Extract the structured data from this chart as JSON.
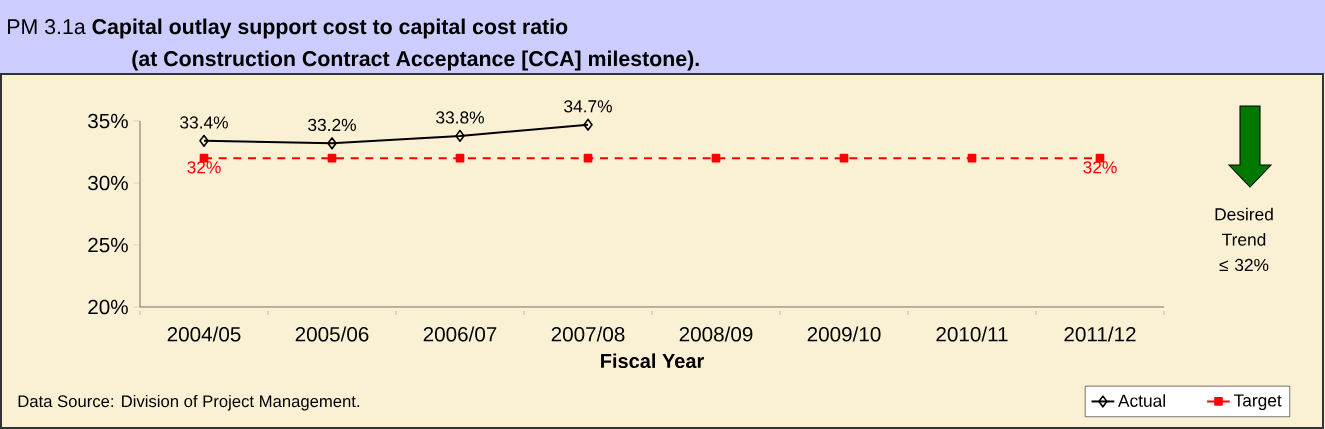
{
  "chart_data": {
    "type": "line",
    "title": "PM 3.1a **Capital outlay support cost to capital cost ratio**",
    "subtitle": "(at Construction Contract Acceptance [CCA] milestone).",
    "xlabel": "Fiscal Year",
    "categories": [
      "2004/05",
      "2005/06",
      "2006/07",
      "2007/08",
      "2008/09",
      "2009/10",
      "2010/11",
      "2011/12"
    ],
    "series": [
      {
        "name": "Actual",
        "color": "#000000",
        "marker": "diamond",
        "line_style": "solid",
        "values": [
          33.4,
          33.2,
          33.8,
          34.7,
          null,
          null,
          null,
          null
        ],
        "value_labels": [
          "33.4%",
          "33.2%",
          "33.8%",
          "34.7%",
          null,
          null,
          null,
          null
        ]
      },
      {
        "name": "Target",
        "color": "#ff0000",
        "marker": "square",
        "line_style": "dashed",
        "values": [
          32,
          32,
          32,
          32,
          32,
          32,
          32,
          32
        ],
        "value_labels": [
          "32%",
          null,
          null,
          null,
          null,
          null,
          null,
          "32%"
        ]
      }
    ],
    "ylim": [
      20,
      35
    ],
    "yticks": [
      {
        "value": 20,
        "label": "20%"
      },
      {
        "value": 25,
        "label": "25%"
      },
      {
        "value": 30,
        "label": "30%"
      },
      {
        "value": 35,
        "label": "35%"
      }
    ],
    "grid": false,
    "legend": "bottom right",
    "annotations": [
      "Desired Trend ≤ 32%",
      "Data Source: Division of Project Management."
    ]
  }
}
